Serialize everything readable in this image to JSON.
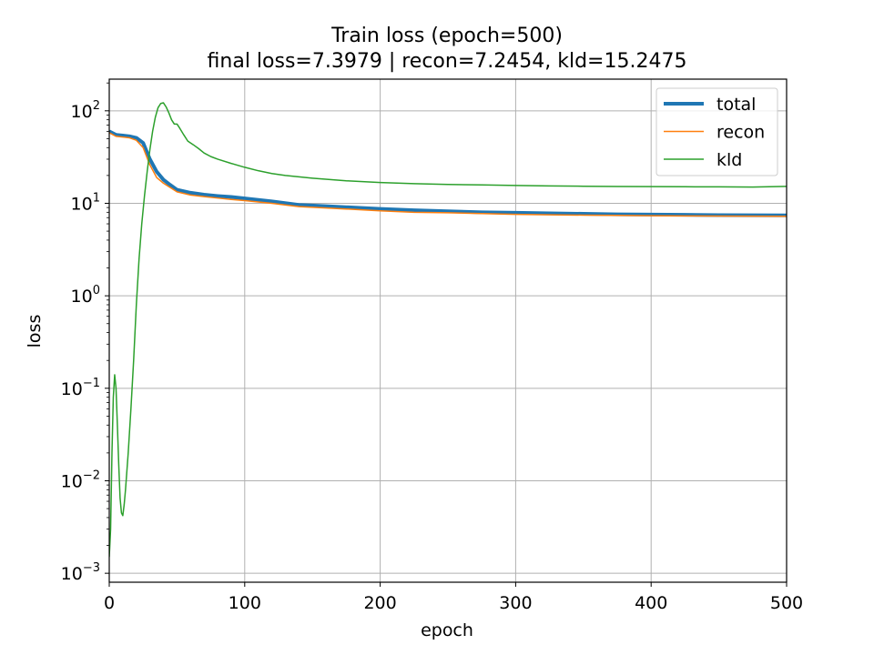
{
  "chart_data": {
    "type": "line",
    "title": "Train loss (epoch=500)",
    "subtitle": "final loss=7.3979 | recon=7.2454, kld=15.2475",
    "xlabel": "epoch",
    "ylabel": "loss",
    "xlim": [
      0,
      500
    ],
    "ylim": [
      0.0008,
      220
    ],
    "yscale": "log",
    "grid": true,
    "legend_position": "top-right",
    "x_ticks": [
      {
        "value": 0,
        "label": "0"
      },
      {
        "value": 100,
        "label": "100"
      },
      {
        "value": 200,
        "label": "200"
      },
      {
        "value": 300,
        "label": "300"
      },
      {
        "value": 400,
        "label": "400"
      },
      {
        "value": 500,
        "label": "500"
      }
    ],
    "y_ticks": [
      {
        "value": 0.001,
        "base": "10",
        "exp": "−3"
      },
      {
        "value": 0.01,
        "base": "10",
        "exp": "−2"
      },
      {
        "value": 0.1,
        "base": "10",
        "exp": "−1"
      },
      {
        "value": 1,
        "base": "10",
        "exp": "0"
      },
      {
        "value": 10,
        "base": "10",
        "exp": "1"
      },
      {
        "value": 100,
        "base": "10",
        "exp": "2"
      }
    ],
    "series": [
      {
        "name": "total",
        "color": "#1f77b4",
        "x": [
          0,
          5,
          10,
          15,
          20,
          25,
          30,
          35,
          40,
          45,
          50,
          60,
          70,
          80,
          90,
          100,
          120,
          140,
          160,
          180,
          200,
          225,
          250,
          275,
          300,
          325,
          350,
          375,
          400,
          425,
          450,
          475,
          500
        ],
        "y": [
          60,
          55,
          54,
          53,
          51,
          45,
          30,
          22,
          18,
          15.8,
          14,
          13,
          12.4,
          12,
          11.7,
          11.3,
          10.5,
          9.6,
          9.3,
          9.0,
          8.7,
          8.4,
          8.2,
          8.0,
          7.9,
          7.8,
          7.7,
          7.6,
          7.55,
          7.5,
          7.45,
          7.42,
          7.3979
        ]
      },
      {
        "name": "recon",
        "color": "#ff7f0e",
        "x": [
          0,
          5,
          10,
          15,
          20,
          25,
          30,
          35,
          40,
          45,
          50,
          60,
          70,
          80,
          90,
          100,
          120,
          140,
          160,
          180,
          200,
          225,
          250,
          275,
          300,
          325,
          350,
          375,
          400,
          425,
          450,
          475,
          500
        ],
        "y": [
          58,
          53,
          52,
          51,
          48,
          40,
          26,
          19,
          16.5,
          14.8,
          13.3,
          12.3,
          11.8,
          11.4,
          11.0,
          10.7,
          10.0,
          9.2,
          8.9,
          8.6,
          8.3,
          8.0,
          7.9,
          7.75,
          7.6,
          7.5,
          7.45,
          7.4,
          7.35,
          7.3,
          7.28,
          7.26,
          7.2454
        ]
      },
      {
        "name": "kld",
        "color": "#2ca02c",
        "x": [
          0,
          1,
          2,
          3,
          4,
          5,
          6,
          7,
          8,
          9,
          10,
          11,
          12,
          14,
          16,
          18,
          20,
          22,
          24,
          26,
          28,
          30,
          32,
          34,
          36,
          38,
          40,
          42,
          44,
          46,
          48,
          50,
          52,
          55,
          58,
          62,
          66,
          70,
          75,
          80,
          90,
          100,
          110,
          120,
          130,
          150,
          175,
          200,
          225,
          250,
          275,
          300,
          325,
          350,
          375,
          400,
          425,
          450,
          475,
          500
        ],
        "y": [
          0.0015,
          0.003,
          0.02,
          0.08,
          0.14,
          0.1,
          0.04,
          0.015,
          0.0065,
          0.0045,
          0.0042,
          0.0055,
          0.008,
          0.02,
          0.06,
          0.2,
          0.8,
          2.5,
          6,
          12,
          22,
          38,
          60,
          85,
          108,
          120,
          122,
          110,
          95,
          80,
          72,
          72,
          65,
          55,
          47,
          43,
          39,
          35,
          32,
          30,
          27,
          24.5,
          22.5,
          21,
          20,
          18.7,
          17.5,
          16.8,
          16.3,
          16.0,
          15.8,
          15.6,
          15.4,
          15.3,
          15.2,
          15.15,
          15.1,
          15.05,
          15.0,
          15.2475
        ]
      }
    ]
  }
}
